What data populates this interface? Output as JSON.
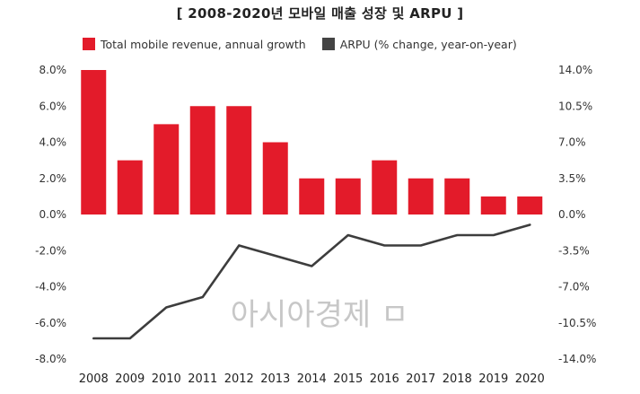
{
  "chart_data": {
    "type": "bar",
    "title": "[ 2008-2020년 모바일 매출 성장 및 ARPU ]",
    "categories": [
      "2008",
      "2009",
      "2010",
      "2011",
      "2012",
      "2013",
      "2014",
      "2015",
      "2016",
      "2017",
      "2018",
      "2019",
      "2020"
    ],
    "series": [
      {
        "name": "Total mobile revenue, annual growth",
        "type": "bar",
        "axis": "left",
        "color": "#e31b2a",
        "values": [
          8.0,
          3.0,
          5.0,
          6.0,
          6.0,
          4.0,
          2.0,
          2.0,
          3.0,
          2.0,
          2.0,
          1.0,
          1.0
        ]
      },
      {
        "name": "ARPU (% change, year-on-year)",
        "type": "line",
        "axis": "right",
        "color": "#3d3d3d",
        "values": [
          -12.0,
          -12.0,
          -9.0,
          -8.0,
          -3.0,
          -4.0,
          -5.0,
          -2.0,
          -3.0,
          -3.0,
          -2.0,
          -2.0,
          -1.0
        ]
      }
    ],
    "y_left": {
      "lim": [
        -8,
        8
      ],
      "ticks": [
        8,
        6,
        4,
        2,
        0,
        -2,
        -4,
        -6,
        -8
      ],
      "tick_labels": [
        "8.0%",
        "6.0%",
        "4.0%",
        "2.0%",
        "0.0%",
        "-2.0%",
        "-4.0%",
        "-6.0%",
        "-8.0%"
      ]
    },
    "y_right": {
      "lim": [
        -14,
        14
      ],
      "ticks": [
        14,
        10.5,
        7,
        3.5,
        0,
        -3.5,
        -7,
        -10.5,
        -14
      ],
      "tick_labels": [
        "14.0%",
        "10.5%",
        "7.0%",
        "3.5%",
        "0.0%",
        "-3.5%",
        "-7.0%",
        "-10.5%",
        "-14.0%"
      ]
    },
    "legend_position": "top",
    "grid": false,
    "watermark": "아시아경제 ㅁ"
  }
}
